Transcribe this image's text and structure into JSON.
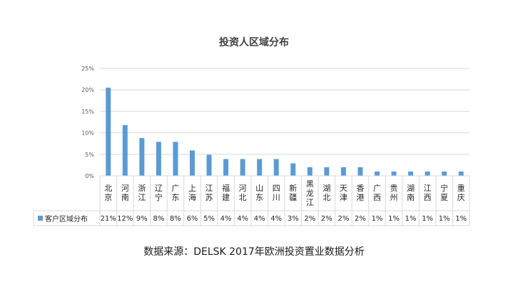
{
  "chart_data": {
    "type": "bar",
    "title": "投资人区域分布",
    "categories": [
      "北京",
      "河南",
      "浙江",
      "辽宁",
      "广东",
      "上海",
      "江苏",
      "福建",
      "河北",
      "山东",
      "四川",
      "新疆",
      "黑龙江",
      "湖北",
      "天津",
      "香港",
      "广西",
      "贵州",
      "湖南",
      "江西",
      "宁夏",
      "重庆"
    ],
    "series": [
      {
        "name": "客户区域分布",
        "values": [
          20.5,
          11.8,
          8.8,
          7.9,
          7.9,
          5.9,
          4.9,
          3.9,
          3.9,
          3.9,
          3.9,
          2.9,
          2.0,
          2.0,
          2.0,
          2.0,
          1.0,
          1.0,
          1.0,
          1.0,
          1.0,
          1.0
        ],
        "labels": [
          "21%",
          "12%",
          "9%",
          "8%",
          "8%",
          "6%",
          "5%",
          "4%",
          "4%",
          "4%",
          "4%",
          "3%",
          "2%",
          "2%",
          "2%",
          "2%",
          "1%",
          "1%",
          "1%",
          "1%",
          "1%",
          "1%"
        ],
        "color": "#5b9bd5"
      }
    ],
    "ylim": [
      0,
      25
    ],
    "yticks": [
      "0%",
      "5%",
      "10%",
      "15%",
      "20%",
      "25%"
    ],
    "grid": true,
    "legend": "data-table-left"
  },
  "caption": "数据来源：DELSK 2017年欧洲投资置业数据分析",
  "colors": {
    "bar": "#5b9bd5",
    "grid": "#d9d9d9",
    "text": "#595959"
  }
}
